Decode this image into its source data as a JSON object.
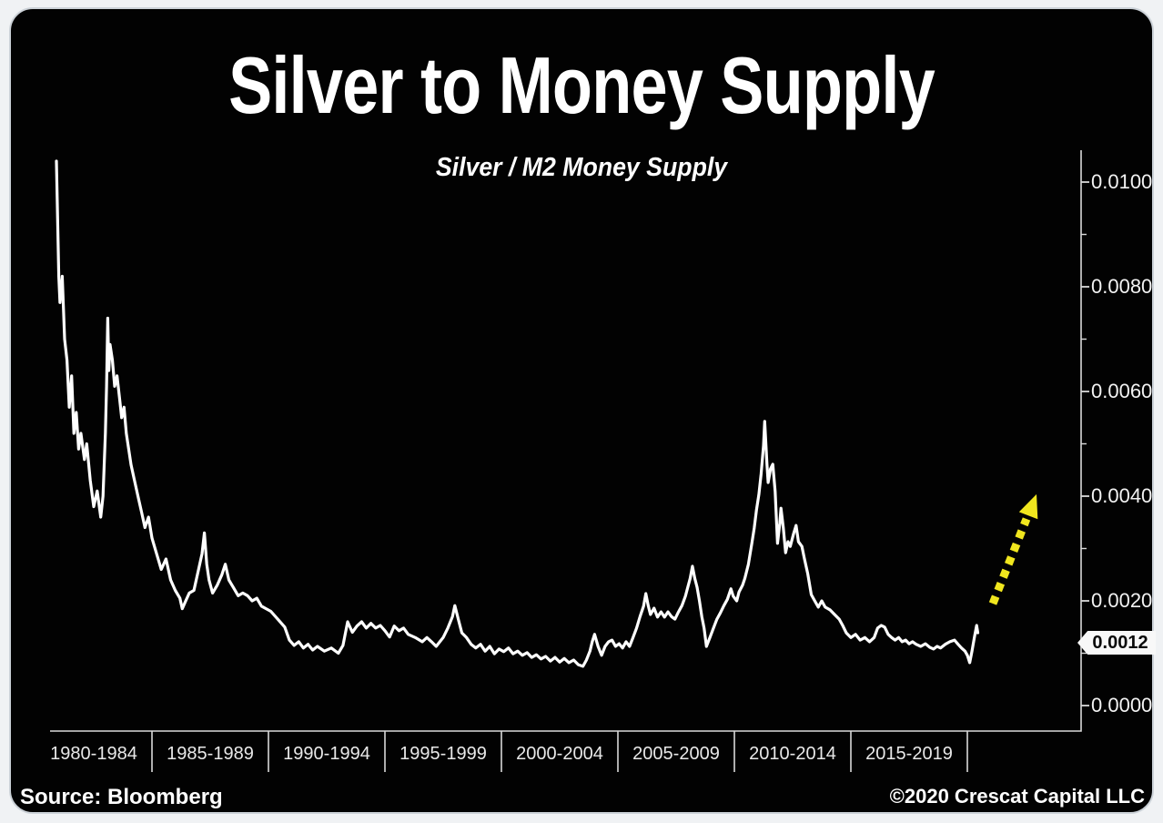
{
  "page": {
    "background_color": "#f0f2f4",
    "card_background": "#020202"
  },
  "header": {
    "title": "Silver to Money Supply",
    "subtitle": "Silver / M2 Money Supply"
  },
  "annotations": {
    "current_value_label": "0.0012",
    "trend_arrow": {
      "direction": "up-right",
      "style": "dashed",
      "color": "#f0e61e"
    }
  },
  "footer": {
    "source": "Source: Bloomberg",
    "copyright": "©2020 Crescat Capital LLC"
  },
  "chart_data": {
    "type": "line",
    "title": "Silver to Money Supply",
    "subtitle": "Silver / M2 Money Supply",
    "grid": false,
    "legend": "none",
    "background": "#020202",
    "style": {
      "line_color": "#ffffff",
      "line_width": 3.2,
      "axis_color": "#d9d9d9"
    },
    "x_axis": {
      "labels": [
        "1980-1984",
        "1985-1989",
        "1990-1994",
        "1995-1999",
        "2000-2004",
        "2005-2009",
        "2010-2014",
        "2015-2019"
      ],
      "section_start_years": [
        1980,
        1985,
        1990,
        1995,
        2000,
        2005,
        2010,
        2015
      ],
      "range": [
        1980,
        2024.9
      ]
    },
    "y_axis": {
      "side": "right",
      "range": [
        0,
        0.0106
      ],
      "ticks": [
        {
          "label": "0.0100",
          "value": 0.01
        },
        {
          "label": "0.0080",
          "value": 0.008
        },
        {
          "label": "0.0060",
          "value": 0.006
        },
        {
          "label": "0.0040",
          "value": 0.004
        },
        {
          "label": "0.0020",
          "value": 0.002
        },
        {
          "label": "0.0000",
          "value": 0.0
        }
      ],
      "minor_tick_values": [
        0.001,
        0.003,
        0.005,
        0.007,
        0.009
      ],
      "marker_value": 0.0012
    },
    "series": [
      {
        "name": "Silver / M2 Money Supply",
        "color": "#ffffff",
        "points": [
          [
            1980.9,
            0.0104
          ],
          [
            1981.0,
            0.0082
          ],
          [
            1981.05,
            0.0077
          ],
          [
            1981.15,
            0.0082
          ],
          [
            1981.25,
            0.007
          ],
          [
            1981.35,
            0.0066
          ],
          [
            1981.45,
            0.0057
          ],
          [
            1981.55,
            0.0063
          ],
          [
            1981.65,
            0.0052
          ],
          [
            1981.75,
            0.0056
          ],
          [
            1981.85,
            0.0049
          ],
          [
            1981.95,
            0.0052
          ],
          [
            1982.1,
            0.0047
          ],
          [
            1982.2,
            0.005
          ],
          [
            1982.35,
            0.0043
          ],
          [
            1982.5,
            0.0038
          ],
          [
            1982.65,
            0.0041
          ],
          [
            1982.8,
            0.0036
          ],
          [
            1982.9,
            0.004
          ],
          [
            1983.0,
            0.0052
          ],
          [
            1983.05,
            0.0061
          ],
          [
            1983.1,
            0.0074
          ],
          [
            1983.15,
            0.0064
          ],
          [
            1983.2,
            0.0069
          ],
          [
            1983.3,
            0.0066
          ],
          [
            1983.4,
            0.0061
          ],
          [
            1983.5,
            0.0063
          ],
          [
            1983.6,
            0.0059
          ],
          [
            1983.7,
            0.0055
          ],
          [
            1983.8,
            0.0057
          ],
          [
            1983.9,
            0.0052
          ],
          [
            1984.0,
            0.0049
          ],
          [
            1984.1,
            0.0046
          ],
          [
            1984.25,
            0.0043
          ],
          [
            1984.4,
            0.004
          ],
          [
            1984.55,
            0.0037
          ],
          [
            1984.7,
            0.0034
          ],
          [
            1984.85,
            0.0036
          ],
          [
            1985.0,
            0.0032
          ],
          [
            1985.2,
            0.0029
          ],
          [
            1985.4,
            0.0026
          ],
          [
            1985.6,
            0.0028
          ],
          [
            1985.8,
            0.0024
          ],
          [
            1986.0,
            0.0022
          ],
          [
            1986.2,
            0.00205
          ],
          [
            1986.3,
            0.00185
          ],
          [
            1986.45,
            0.002
          ],
          [
            1986.6,
            0.00215
          ],
          [
            1986.8,
            0.0022
          ],
          [
            1987.0,
            0.0026
          ],
          [
            1987.15,
            0.0029
          ],
          [
            1987.25,
            0.0033
          ],
          [
            1987.35,
            0.0027
          ],
          [
            1987.45,
            0.0024
          ],
          [
            1987.6,
            0.00215
          ],
          [
            1987.8,
            0.0023
          ],
          [
            1988.0,
            0.0025
          ],
          [
            1988.15,
            0.0027
          ],
          [
            1988.3,
            0.0024
          ],
          [
            1988.5,
            0.00225
          ],
          [
            1988.7,
            0.0021
          ],
          [
            1988.9,
            0.00215
          ],
          [
            1989.1,
            0.0021
          ],
          [
            1989.3,
            0.002
          ],
          [
            1989.5,
            0.00205
          ],
          [
            1989.7,
            0.0019
          ],
          [
            1989.9,
            0.00185
          ],
          [
            1990.1,
            0.0018
          ],
          [
            1990.4,
            0.00165
          ],
          [
            1990.7,
            0.0015
          ],
          [
            1990.9,
            0.00125
          ],
          [
            1991.1,
            0.00115
          ],
          [
            1991.3,
            0.00122
          ],
          [
            1991.5,
            0.0011
          ],
          [
            1991.7,
            0.00117
          ],
          [
            1991.9,
            0.00106
          ],
          [
            1992.1,
            0.00113
          ],
          [
            1992.4,
            0.00104
          ],
          [
            1992.7,
            0.0011
          ],
          [
            1993.0,
            0.001
          ],
          [
            1993.2,
            0.00115
          ],
          [
            1993.4,
            0.0016
          ],
          [
            1993.6,
            0.0014
          ],
          [
            1993.8,
            0.00152
          ],
          [
            1994.0,
            0.0016
          ],
          [
            1994.2,
            0.00148
          ],
          [
            1994.4,
            0.00157
          ],
          [
            1994.6,
            0.00148
          ],
          [
            1994.8,
            0.00153
          ],
          [
            1995.0,
            0.00143
          ],
          [
            1995.2,
            0.00131
          ],
          [
            1995.4,
            0.00152
          ],
          [
            1995.6,
            0.00143
          ],
          [
            1995.8,
            0.00148
          ],
          [
            1996.0,
            0.00136
          ],
          [
            1996.3,
            0.0013
          ],
          [
            1996.6,
            0.00122
          ],
          [
            1996.8,
            0.0013
          ],
          [
            1997.0,
            0.00122
          ],
          [
            1997.2,
            0.00113
          ],
          [
            1997.5,
            0.0013
          ],
          [
            1997.7,
            0.00148
          ],
          [
            1997.9,
            0.0017
          ],
          [
            1998.0,
            0.00191
          ],
          [
            1998.15,
            0.00165
          ],
          [
            1998.3,
            0.00139
          ],
          [
            1998.5,
            0.0013
          ],
          [
            1998.7,
            0.00117
          ],
          [
            1998.9,
            0.0011
          ],
          [
            1999.1,
            0.00117
          ],
          [
            1999.3,
            0.00104
          ],
          [
            1999.5,
            0.00113
          ],
          [
            1999.7,
            0.00099
          ],
          [
            1999.9,
            0.00108
          ],
          [
            2000.1,
            0.00103
          ],
          [
            2000.3,
            0.0011
          ],
          [
            2000.5,
            0.00099
          ],
          [
            2000.7,
            0.00104
          ],
          [
            2000.9,
            0.00096
          ],
          [
            2001.1,
            0.00101
          ],
          [
            2001.3,
            0.00092
          ],
          [
            2001.5,
            0.00097
          ],
          [
            2001.7,
            0.00089
          ],
          [
            2001.9,
            0.00094
          ],
          [
            2002.1,
            0.00085
          ],
          [
            2002.3,
            0.00092
          ],
          [
            2002.5,
            0.00083
          ],
          [
            2002.7,
            0.0009
          ],
          [
            2002.9,
            0.00082
          ],
          [
            2003.1,
            0.00087
          ],
          [
            2003.3,
            0.00078
          ],
          [
            2003.5,
            0.00075
          ],
          [
            2003.65,
            0.00087
          ],
          [
            2003.8,
            0.00104
          ],
          [
            2003.9,
            0.00122
          ],
          [
            2004.0,
            0.00136
          ],
          [
            2004.15,
            0.00113
          ],
          [
            2004.3,
            0.00096
          ],
          [
            2004.45,
            0.00113
          ],
          [
            2004.6,
            0.00122
          ],
          [
            2004.75,
            0.00125
          ],
          [
            2004.9,
            0.00113
          ],
          [
            2005.05,
            0.00118
          ],
          [
            2005.2,
            0.0011
          ],
          [
            2005.35,
            0.00122
          ],
          [
            2005.5,
            0.00113
          ],
          [
            2005.65,
            0.0013
          ],
          [
            2005.8,
            0.00148
          ],
          [
            2005.95,
            0.0017
          ],
          [
            2006.1,
            0.0019
          ],
          [
            2006.2,
            0.00214
          ],
          [
            2006.3,
            0.00191
          ],
          [
            2006.4,
            0.00174
          ],
          [
            2006.55,
            0.00186
          ],
          [
            2006.7,
            0.00169
          ],
          [
            2006.85,
            0.00179
          ],
          [
            2007.0,
            0.00169
          ],
          [
            2007.15,
            0.00179
          ],
          [
            2007.3,
            0.0017
          ],
          [
            2007.45,
            0.00165
          ],
          [
            2007.6,
            0.00179
          ],
          [
            2007.75,
            0.00191
          ],
          [
            2007.9,
            0.00209
          ],
          [
            2008.0,
            0.00226
          ],
          [
            2008.1,
            0.00243
          ],
          [
            2008.2,
            0.00266
          ],
          [
            2008.3,
            0.00243
          ],
          [
            2008.4,
            0.00226
          ],
          [
            2008.5,
            0.002
          ],
          [
            2008.6,
            0.0017
          ],
          [
            2008.7,
            0.00148
          ],
          [
            2008.8,
            0.00113
          ],
          [
            2008.95,
            0.0013
          ],
          [
            2009.1,
            0.00148
          ],
          [
            2009.25,
            0.00165
          ],
          [
            2009.4,
            0.00177
          ],
          [
            2009.55,
            0.00191
          ],
          [
            2009.7,
            0.00203
          ],
          [
            2009.85,
            0.00223
          ],
          [
            2009.95,
            0.00209
          ],
          [
            2010.1,
            0.002
          ],
          [
            2010.2,
            0.00217
          ],
          [
            2010.35,
            0.0023
          ],
          [
            2010.45,
            0.00243
          ],
          [
            2010.6,
            0.0027
          ],
          [
            2010.75,
            0.0031
          ],
          [
            2010.85,
            0.00339
          ],
          [
            2010.95,
            0.00374
          ],
          [
            2011.05,
            0.00403
          ],
          [
            2011.15,
            0.00443
          ],
          [
            2011.25,
            0.00496
          ],
          [
            2011.3,
            0.00543
          ],
          [
            2011.4,
            0.00461
          ],
          [
            2011.45,
            0.00426
          ],
          [
            2011.55,
            0.00452
          ],
          [
            2011.65,
            0.00461
          ],
          [
            2011.75,
            0.00409
          ],
          [
            2011.85,
            0.0031
          ],
          [
            2011.95,
            0.00348
          ],
          [
            2012.0,
            0.00377
          ],
          [
            2012.1,
            0.00339
          ],
          [
            2012.2,
            0.00292
          ],
          [
            2012.3,
            0.00313
          ],
          [
            2012.4,
            0.00304
          ],
          [
            2012.55,
            0.0033
          ],
          [
            2012.65,
            0.00344
          ],
          [
            2012.75,
            0.00313
          ],
          [
            2012.9,
            0.00304
          ],
          [
            2013.0,
            0.00282
          ],
          [
            2013.15,
            0.00252
          ],
          [
            2013.3,
            0.00212
          ],
          [
            2013.45,
            0.002
          ],
          [
            2013.6,
            0.00188
          ],
          [
            2013.75,
            0.002
          ],
          [
            2013.9,
            0.00188
          ],
          [
            2014.1,
            0.00183
          ],
          [
            2014.3,
            0.00174
          ],
          [
            2014.5,
            0.00165
          ],
          [
            2014.65,
            0.00153
          ],
          [
            2014.8,
            0.00139
          ],
          [
            2015.0,
            0.0013
          ],
          [
            2015.2,
            0.00136
          ],
          [
            2015.4,
            0.00125
          ],
          [
            2015.6,
            0.0013
          ],
          [
            2015.8,
            0.00122
          ],
          [
            2016.0,
            0.0013
          ],
          [
            2016.15,
            0.00148
          ],
          [
            2016.3,
            0.00153
          ],
          [
            2016.45,
            0.0015
          ],
          [
            2016.6,
            0.00136
          ],
          [
            2016.75,
            0.0013
          ],
          [
            2016.9,
            0.00125
          ],
          [
            2017.05,
            0.0013
          ],
          [
            2017.2,
            0.00122
          ],
          [
            2017.35,
            0.00125
          ],
          [
            2017.5,
            0.00118
          ],
          [
            2017.65,
            0.00122
          ],
          [
            2017.8,
            0.00117
          ],
          [
            2018.0,
            0.00113
          ],
          [
            2018.2,
            0.00118
          ],
          [
            2018.4,
            0.00111
          ],
          [
            2018.55,
            0.00108
          ],
          [
            2018.7,
            0.00113
          ],
          [
            2018.85,
            0.0011
          ],
          [
            2019.05,
            0.00117
          ],
          [
            2019.25,
            0.00122
          ],
          [
            2019.45,
            0.00125
          ],
          [
            2019.6,
            0.00117
          ],
          [
            2019.75,
            0.0011
          ],
          [
            2019.9,
            0.00104
          ],
          [
            2020.0,
            0.00096
          ],
          [
            2020.1,
            0.00082
          ],
          [
            2020.2,
            0.00104
          ],
          [
            2020.3,
            0.0013
          ],
          [
            2020.4,
            0.00153
          ],
          [
            2020.45,
            0.00139
          ]
        ]
      }
    ]
  }
}
